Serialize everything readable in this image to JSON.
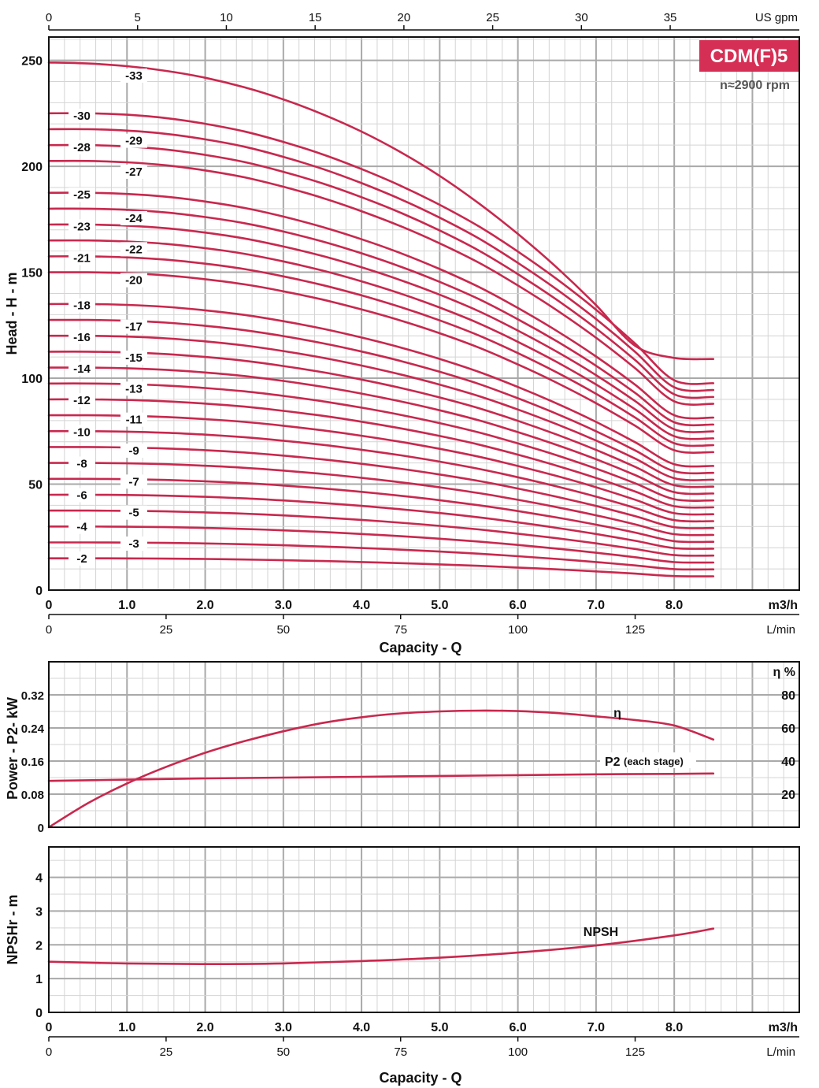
{
  "colors": {
    "curve": "#c8284e",
    "badge_bg": "#d62f55",
    "badge_text": "#ffffff",
    "grid_major": "#a9a9a9",
    "grid_minor": "#d4d4d4",
    "subtitle": "#555555"
  },
  "header": {
    "model": "CDM(F)5",
    "speed": "n≈2900 rpm"
  },
  "chart_data": [
    {
      "type": "line",
      "panel": "head",
      "ylabel": "Head - H - m",
      "xlabel": "Capacity - Q",
      "x_units": "m3/h",
      "x_secondary_units": "L/min",
      "x_top_units": "US gpm",
      "x_ticks": [
        "0",
        "1.0",
        "2.0",
        "3.0",
        "4.0",
        "5.0",
        "6.0",
        "7.0",
        "8.0"
      ],
      "x_secondary_ticks": [
        "0",
        "25",
        "50",
        "75",
        "100",
        "125"
      ],
      "x_top_ticks": [
        "0",
        "5",
        "10",
        "15",
        "20",
        "25",
        "30",
        "35"
      ],
      "y_ticks": [
        "0",
        "50",
        "100",
        "150",
        "200",
        "250"
      ],
      "xlim": [
        0,
        9.6
      ],
      "ylim": [
        0,
        261
      ],
      "grid": true,
      "shape": [
        1.0,
        1.0,
        0.997,
        0.99,
        0.978,
        0.962,
        0.94,
        0.914,
        0.883,
        0.848,
        0.808,
        0.763,
        0.71,
        0.652,
        0.588,
        0.517,
        0.44,
        0.434
      ],
      "shape_x": [
        0,
        0.5,
        1.0,
        1.5,
        2.0,
        2.5,
        3.0,
        3.5,
        4.0,
        4.5,
        5.0,
        5.5,
        6.0,
        6.5,
        7.0,
        7.5,
        8.0,
        8.5
      ],
      "series": [
        {
          "name": "-2",
          "head0": 15.0
        },
        {
          "name": "-3",
          "head0": 22.5
        },
        {
          "name": "-4",
          "head0": 30.0
        },
        {
          "name": "-5",
          "head0": 37.5
        },
        {
          "name": "-6",
          "head0": 45.0
        },
        {
          "name": "-7",
          "head0": 52.5
        },
        {
          "name": "-8",
          "head0": 60.0
        },
        {
          "name": "-9",
          "head0": 67.5
        },
        {
          "name": "-10",
          "head0": 75.0
        },
        {
          "name": "-11",
          "head0": 82.5
        },
        {
          "name": "-12",
          "head0": 90.0
        },
        {
          "name": "-13",
          "head0": 97.5
        },
        {
          "name": "-14",
          "head0": 105.0
        },
        {
          "name": "-15",
          "head0": 112.5
        },
        {
          "name": "-16",
          "head0": 120.0
        },
        {
          "name": "-17",
          "head0": 127.5
        },
        {
          "name": "-18",
          "head0": 135.0
        },
        {
          "name": "-20",
          "head0": 150.0
        },
        {
          "name": "-21",
          "head0": 157.5
        },
        {
          "name": "-22",
          "head0": 165.0
        },
        {
          "name": "-23",
          "head0": 172.5
        },
        {
          "name": "-24",
          "head0": 180.0
        },
        {
          "name": "-25",
          "head0": 187.5
        },
        {
          "name": "-27",
          "head0": 202.5
        },
        {
          "name": "-28",
          "head0": 210.0
        },
        {
          "name": "-29",
          "head0": 217.5
        },
        {
          "name": "-30",
          "head0": 225.0
        },
        {
          "name": "-33",
          "head0": 249.0,
          "shape_override": [
            1.0,
            0.998,
            0.993,
            0.984,
            0.971,
            0.953,
            0.93,
            0.902,
            0.869,
            0.83,
            0.785,
            0.733,
            0.675,
            0.611,
            0.54,
            0.463,
            0.44,
            0.438
          ]
        }
      ]
    },
    {
      "type": "line",
      "panel": "power_efficiency",
      "ylabel": "Power - P2- kW",
      "y2label": "η %",
      "y_ticks": [
        "0",
        "0.08",
        "0.16",
        "0.24",
        "0.32"
      ],
      "y2_ticks": [
        "20",
        "40",
        "60",
        "80"
      ],
      "ylim": [
        0,
        0.4
      ],
      "y2lim": [
        0,
        100
      ],
      "xlim": [
        0,
        9.6
      ],
      "grid": true,
      "series": [
        {
          "name": "η",
          "axis": "right",
          "x": [
            0,
            0.5,
            1.0,
            1.5,
            2.0,
            2.5,
            3.0,
            3.5,
            4.0,
            4.5,
            5.0,
            5.5,
            6.0,
            6.5,
            7.0,
            7.5,
            8.0,
            8.5
          ],
          "values": [
            0,
            14.5,
            26.5,
            36.5,
            45.0,
            52.0,
            58.0,
            63.0,
            66.5,
            68.8,
            70.0,
            70.5,
            70.2,
            69.0,
            67.0,
            64.8,
            61.5,
            53.0
          ]
        },
        {
          "name": "P2",
          "label_suffix": "(each stage)",
          "axis": "left",
          "x": [
            0,
            1.0,
            2.0,
            3.0,
            4.0,
            5.0,
            6.0,
            7.0,
            8.0,
            8.5
          ],
          "values": [
            0.112,
            0.115,
            0.118,
            0.12,
            0.122,
            0.124,
            0.126,
            0.128,
            0.129,
            0.13
          ]
        }
      ]
    },
    {
      "type": "line",
      "panel": "npsh",
      "ylabel": "NPSHr - m",
      "xlabel": "Capacity - Q",
      "x_units": "m3/h",
      "x_secondary_units": "L/min",
      "x_ticks": [
        "0",
        "1.0",
        "2.0",
        "3.0",
        "4.0",
        "5.0",
        "6.0",
        "7.0",
        "8.0"
      ],
      "x_secondary_ticks": [
        "0",
        "25",
        "50",
        "75",
        "100",
        "125"
      ],
      "y_ticks": [
        "0",
        "1",
        "2",
        "3",
        "4"
      ],
      "ylim": [
        0,
        4.9
      ],
      "xlim": [
        0,
        9.6
      ],
      "grid": true,
      "series": [
        {
          "name": "NPSH",
          "x": [
            0,
            1.0,
            2.0,
            3.0,
            4.0,
            5.0,
            6.0,
            7.0,
            8.0,
            8.5
          ],
          "values": [
            1.5,
            1.45,
            1.43,
            1.45,
            1.52,
            1.62,
            1.77,
            1.98,
            2.28,
            2.48
          ]
        }
      ]
    }
  ]
}
